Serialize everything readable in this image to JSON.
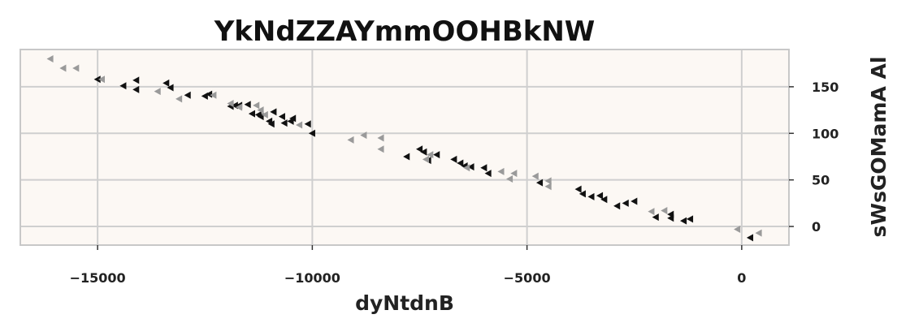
{
  "chart_data": {
    "type": "scatter",
    "title": "YkNdZZAYmmOOHBkNW",
    "xlabel": "dyNtdnB",
    "ylabel": "sWsGOMamA Al",
    "xlim": [
      -16800,
      1100
    ],
    "ylim": [
      -20,
      190
    ],
    "x_ticks": [
      -15000,
      -10000,
      -5000,
      0
    ],
    "x_tick_labels": [
      "−15000",
      "−10000",
      "−5000",
      "0"
    ],
    "y_ticks": [
      0,
      50,
      100,
      150
    ],
    "y_tick_labels": [
      "0",
      "50",
      "100",
      "150"
    ],
    "grid": true,
    "legend": "none",
    "marker": "triangle-left",
    "background_color": "#fcf8f4",
    "series": [
      {
        "color": "#111111",
        "points": [
          [
            -15000,
            158
          ],
          [
            -14400,
            151
          ],
          [
            -14100,
            157
          ],
          [
            -14100,
            147
          ],
          [
            -13400,
            154
          ],
          [
            -13300,
            149
          ],
          [
            -12900,
            141
          ],
          [
            -12500,
            140
          ],
          [
            -12400,
            142
          ],
          [
            -11900,
            129
          ],
          [
            -11800,
            130
          ],
          [
            -11700,
            130
          ],
          [
            -11500,
            131
          ],
          [
            -11400,
            121
          ],
          [
            -11250,
            120
          ],
          [
            -11200,
            118
          ],
          [
            -11000,
            113
          ],
          [
            -10950,
            110
          ],
          [
            -10900,
            123
          ],
          [
            -10700,
            118
          ],
          [
            -10650,
            111
          ],
          [
            -10500,
            113
          ],
          [
            -10450,
            116
          ],
          [
            -10100,
            110
          ],
          [
            -10000,
            100
          ],
          [
            -7800,
            75
          ],
          [
            -7500,
            83
          ],
          [
            -7400,
            80
          ],
          [
            -7300,
            71
          ],
          [
            -7100,
            77
          ],
          [
            -6700,
            72
          ],
          [
            -6550,
            68
          ],
          [
            -6450,
            65
          ],
          [
            -6300,
            64
          ],
          [
            -6000,
            63
          ],
          [
            -5900,
            57
          ],
          [
            -4700,
            47
          ],
          [
            -3800,
            40
          ],
          [
            -3700,
            35
          ],
          [
            -3500,
            32
          ],
          [
            -3300,
            33
          ],
          [
            -3200,
            29
          ],
          [
            -2900,
            22
          ],
          [
            -2700,
            25
          ],
          [
            -2500,
            27
          ],
          [
            -2000,
            10
          ],
          [
            -1650,
            13
          ],
          [
            -1650,
            9
          ],
          [
            -1350,
            6
          ],
          [
            -1200,
            8
          ],
          [
            200,
            -12
          ]
        ]
      },
      {
        "color": "#9a9a9a",
        "points": [
          [
            -16100,
            180
          ],
          [
            -15800,
            170
          ],
          [
            -15500,
            170
          ],
          [
            -14900,
            158
          ],
          [
            -13600,
            145
          ],
          [
            -13100,
            137
          ],
          [
            -12300,
            141
          ],
          [
            -11900,
            132
          ],
          [
            -11700,
            128
          ],
          [
            -11300,
            130
          ],
          [
            -11200,
            125
          ],
          [
            -11100,
            120
          ],
          [
            -10300,
            109
          ],
          [
            -9100,
            93
          ],
          [
            -8800,
            98
          ],
          [
            -8400,
            95
          ],
          [
            -8400,
            83
          ],
          [
            -7350,
            72
          ],
          [
            -7250,
            77
          ],
          [
            -6400,
            63
          ],
          [
            -5600,
            59
          ],
          [
            -5400,
            51
          ],
          [
            -5300,
            57
          ],
          [
            -4800,
            54
          ],
          [
            -4500,
            49
          ],
          [
            -4500,
            43
          ],
          [
            -2100,
            16
          ],
          [
            -1800,
            17
          ],
          [
            -100,
            -3
          ],
          [
            400,
            -7
          ]
        ]
      }
    ]
  }
}
